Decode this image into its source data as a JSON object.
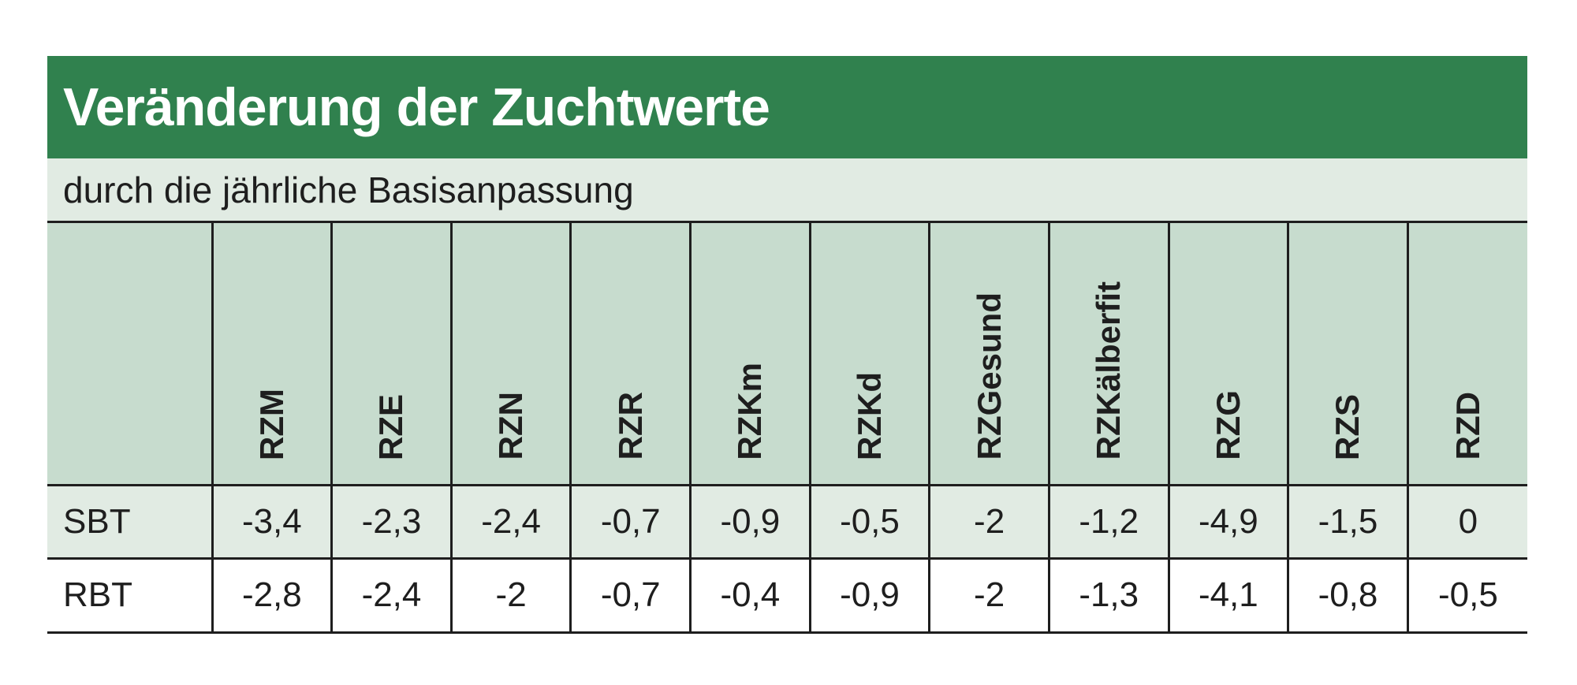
{
  "title": "Veränderung der Zuchtwerte",
  "subtitle": "durch die jährliche Basisanpassung",
  "colors": {
    "title_bar": "#30814e",
    "subtitle_bar": "#e1ebe3",
    "header_row": "#c7dcce",
    "row_sbt": "#e1ebe3",
    "row_rbt": "#ffffff",
    "text": "#1e1e1e"
  },
  "table": {
    "columns": [
      "RZM",
      "RZE",
      "RZN",
      "RZR",
      "RZKm",
      "RZKd",
      "RZGesund",
      "RZKälberfit",
      "RZG",
      "RZS",
      "RZD"
    ],
    "rows": [
      {
        "label": "SBT",
        "values": [
          "-3,4",
          "-2,3",
          "-2,4",
          "-0,7",
          "-0,9",
          "-0,5",
          "-2",
          "-1,2",
          "-4,9",
          "-1,5",
          "0"
        ]
      },
      {
        "label": "RBT",
        "values": [
          "-2,8",
          "-2,4",
          "-2",
          "-0,7",
          "-0,4",
          "-0,9",
          "-2",
          "-1,3",
          "-4,1",
          "-0,8",
          "-0,5"
        ]
      }
    ]
  }
}
